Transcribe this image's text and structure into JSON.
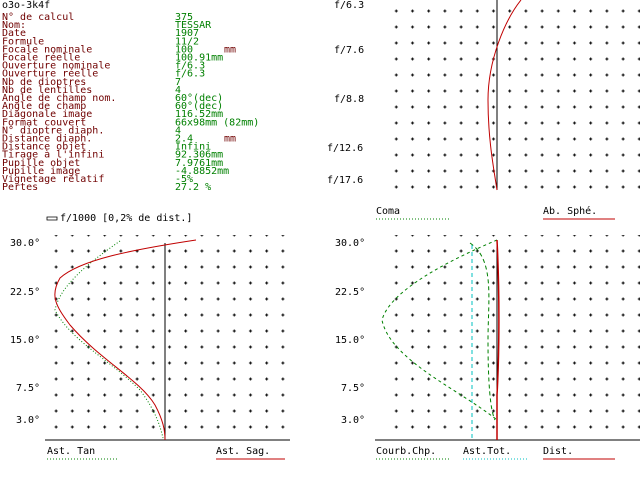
{
  "header": {
    "title": "o3o-3k4f"
  },
  "params": [
    {
      "label": "N° de calcul",
      "value": "375"
    },
    {
      "label": "Nom:",
      "value": "TESSAR"
    },
    {
      "label": "Date",
      "value": "1907"
    },
    {
      "label": "Formule",
      "value": "11/2"
    },
    {
      "label": "Focale nominale",
      "value": "100",
      "unit": "mm"
    },
    {
      "label": "Focale réelle",
      "value": "100.91mm"
    },
    {
      "label": "Ouverture nominale",
      "value": "f/6.3"
    },
    {
      "label": "Ouverture réelle",
      "value": "f/6.3"
    },
    {
      "label": "Nb de dioptres",
      "value": "7"
    },
    {
      "label": "Nb de lentilles",
      "value": "4"
    },
    {
      "label": "Angle de champ nom.",
      "value": "60°(dec)"
    },
    {
      "label": "Angle de champ",
      "value": "60°(dec)"
    },
    {
      "label": "Diagonale image",
      "value": "116.52mm"
    },
    {
      "label": "Format couvert",
      "value": "66x98mm (82mm)"
    },
    {
      "label": "N° dioptre diaph.",
      "value": "4"
    },
    {
      "label": "Distance diaph.",
      "value": "2.4",
      "unit": "mm"
    },
    {
      "label": "Distance objet",
      "value": "Infini"
    },
    {
      "label": "Tirage à l'infini",
      "value": "92.306mm"
    },
    {
      "label": "Pupille objet",
      "value": "7.9761mm"
    },
    {
      "label": "Pupille image",
      "value": "-4.8852mm"
    },
    {
      "label": "Vignetage relatif",
      "value": "-5%"
    },
    {
      "label": "Pertes",
      "value": "27.2 %"
    }
  ],
  "spherical": {
    "yaxis": [
      "f/6.3",
      "f/7.6",
      "f/8.8",
      "f/12.6",
      "f/17.6"
    ],
    "legend": [
      "Coma",
      "Ab. Sphé."
    ]
  },
  "astigmatism": {
    "title": "f/1000 [0,2% de dist.]",
    "yaxis": [
      "30.0°",
      "22.5°",
      "15.0°",
      "7.5°",
      "3.0°"
    ],
    "legend": [
      "Ast. Tan",
      "Ast. Sag."
    ]
  },
  "field": {
    "yaxis": [
      "30.0°",
      "22.5°",
      "15.0°",
      "7.5°",
      "3.0°"
    ],
    "legend": [
      "Courb.Chp.",
      "Ast.Tot.",
      "Dist."
    ]
  }
}
